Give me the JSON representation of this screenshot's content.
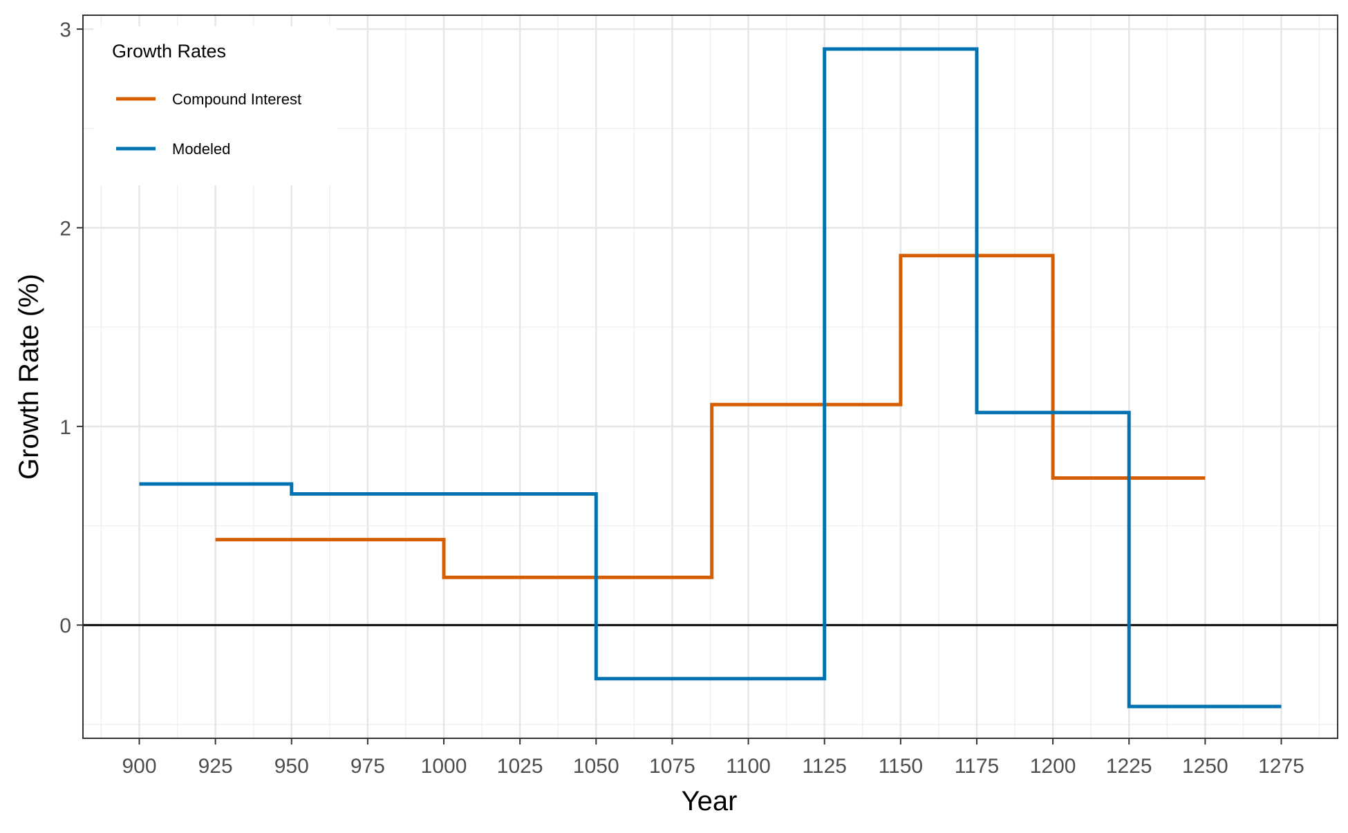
{
  "chart_data": {
    "type": "line",
    "step": true,
    "title": "",
    "xlabel": "Year",
    "ylabel": "Growth Rate (%)",
    "xlim": [
      881.5,
      1293.5
    ],
    "ylim": [
      -0.57,
      3.07
    ],
    "x_ticks": [
      900,
      925,
      950,
      975,
      1000,
      1025,
      1050,
      1075,
      1100,
      1125,
      1150,
      1175,
      1200,
      1225,
      1250,
      1275
    ],
    "x_tick_labels": [
      "900",
      "925",
      "950",
      "975",
      "1000",
      "1025",
      "1050",
      "1075",
      "1100",
      "1125",
      "1150",
      "1175",
      "1200",
      "1225",
      "1250",
      "1275"
    ],
    "y_ticks": [
      0,
      1,
      2,
      3
    ],
    "y_tick_labels": [
      "0",
      "1",
      "2",
      "3"
    ],
    "grid": true,
    "zero_line": true,
    "legend": {
      "title": "Growth Rates",
      "position": "top-left"
    },
    "series": [
      {
        "name": "Compound Interest",
        "color": "#D55E00",
        "steps": [
          {
            "x_start": 925,
            "x_end": 1000,
            "y": 0.43
          },
          {
            "x_start": 1000,
            "x_end": 1088,
            "y": 0.24
          },
          {
            "x_start": 1088,
            "x_end": 1150,
            "y": 1.11
          },
          {
            "x_start": 1150,
            "x_end": 1200,
            "y": 1.86
          },
          {
            "x_start": 1200,
            "x_end": 1250,
            "y": 0.74
          }
        ]
      },
      {
        "name": "Modeled",
        "color": "#0072B2",
        "steps": [
          {
            "x_start": 900,
            "x_end": 950,
            "y": 0.71
          },
          {
            "x_start": 950,
            "x_end": 1050,
            "y": 0.66
          },
          {
            "x_start": 1050,
            "x_end": 1125,
            "y": -0.27
          },
          {
            "x_start": 1125,
            "x_end": 1175,
            "y": 2.9
          },
          {
            "x_start": 1175,
            "x_end": 1225,
            "y": 1.07
          },
          {
            "x_start": 1225,
            "x_end": 1275,
            "y": -0.41
          }
        ]
      }
    ]
  }
}
